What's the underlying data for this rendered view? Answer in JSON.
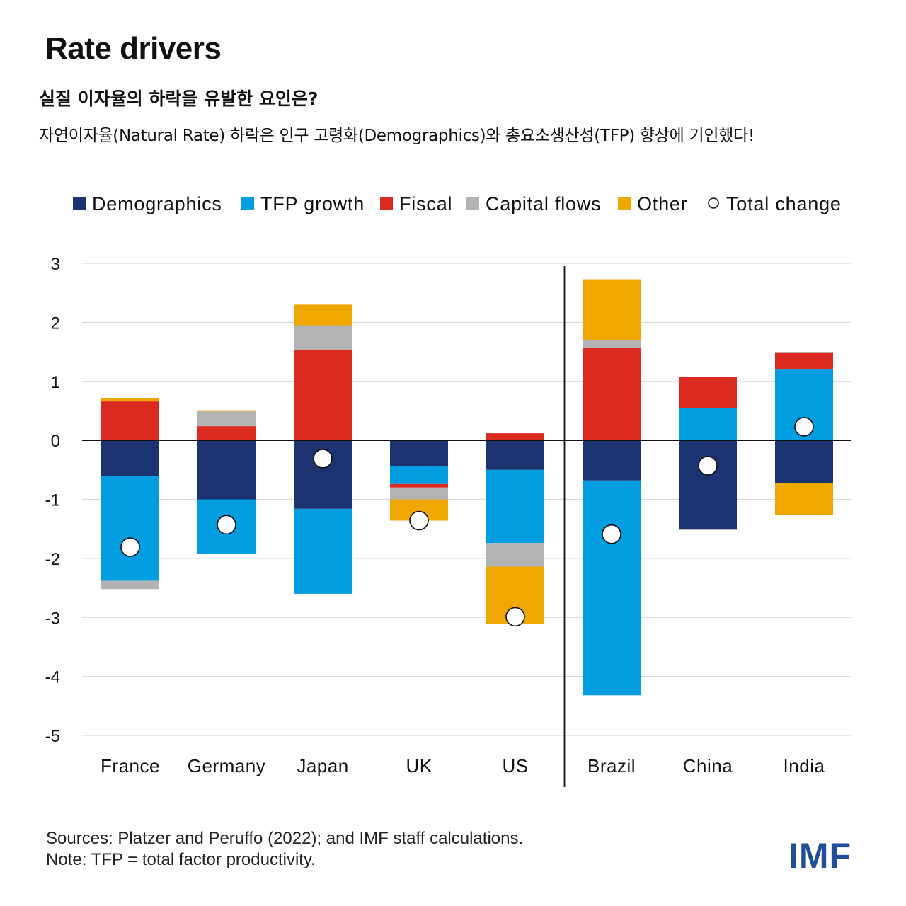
{
  "header": {
    "title": "Rate drivers",
    "subtitle": "실질 이자율의 하락을 유발한 요인은?",
    "description": "자연이자율(Natural Rate) 하락은 인구 고령화(Demographics)와 총요소생산성(TFP) 향상에 기인했다!"
  },
  "footer": {
    "source": "Sources: Platzer and Peruffo (2022); and IMF staff calculations.",
    "note": "Note: TFP = total factor productivity.",
    "logo": "IMF"
  },
  "chart_data": {
    "type": "bar",
    "stacked": true,
    "title": "",
    "xlabel": "",
    "ylabel": "",
    "ylim": [
      -5,
      3
    ],
    "yticks": [
      3,
      2,
      1,
      0,
      -1,
      -2,
      -3,
      -4,
      -5
    ],
    "ytick_labels": [
      "3",
      "2",
      "1",
      "0",
      "-1",
      "-2",
      "-3",
      "-4",
      "-5"
    ],
    "grid": true,
    "legend_position": "top",
    "divider_after_category": "US",
    "categories": [
      "France",
      "Germany",
      "Japan",
      "UK",
      "US",
      "Brazil",
      "China",
      "India"
    ],
    "series": [
      {
        "name": "Demographics",
        "color": "#1b3370",
        "values": [
          -0.6,
          -1.0,
          -1.16,
          -0.44,
          -0.5,
          -0.68,
          -1.5,
          -0.72
        ]
      },
      {
        "name": "TFP growth",
        "color": "#009de0",
        "values": [
          -1.78,
          -0.92,
          -1.44,
          -0.3,
          -1.24,
          -3.64,
          0.55,
          1.2
        ]
      },
      {
        "name": "Fiscal",
        "color": "#db2a1f",
        "values": [
          0.66,
          0.24,
          1.54,
          -0.06,
          0.12,
          1.57,
          0.53,
          0.28
        ]
      },
      {
        "name": "Capital flows",
        "color": "#b3b3b3",
        "values": [
          -0.14,
          0.25,
          0.41,
          -0.2,
          -0.4,
          0.13,
          -0.02,
          0.02
        ]
      },
      {
        "name": "Other",
        "color": "#f0a800",
        "values": [
          0.05,
          0.02,
          0.35,
          -0.36,
          -0.97,
          1.03,
          0.0,
          -0.54
        ]
      }
    ],
    "total": {
      "name": "Total change",
      "values": [
        -1.81,
        -1.43,
        -0.31,
        -1.36,
        -2.99,
        -1.59,
        -0.43,
        0.23
      ]
    }
  }
}
